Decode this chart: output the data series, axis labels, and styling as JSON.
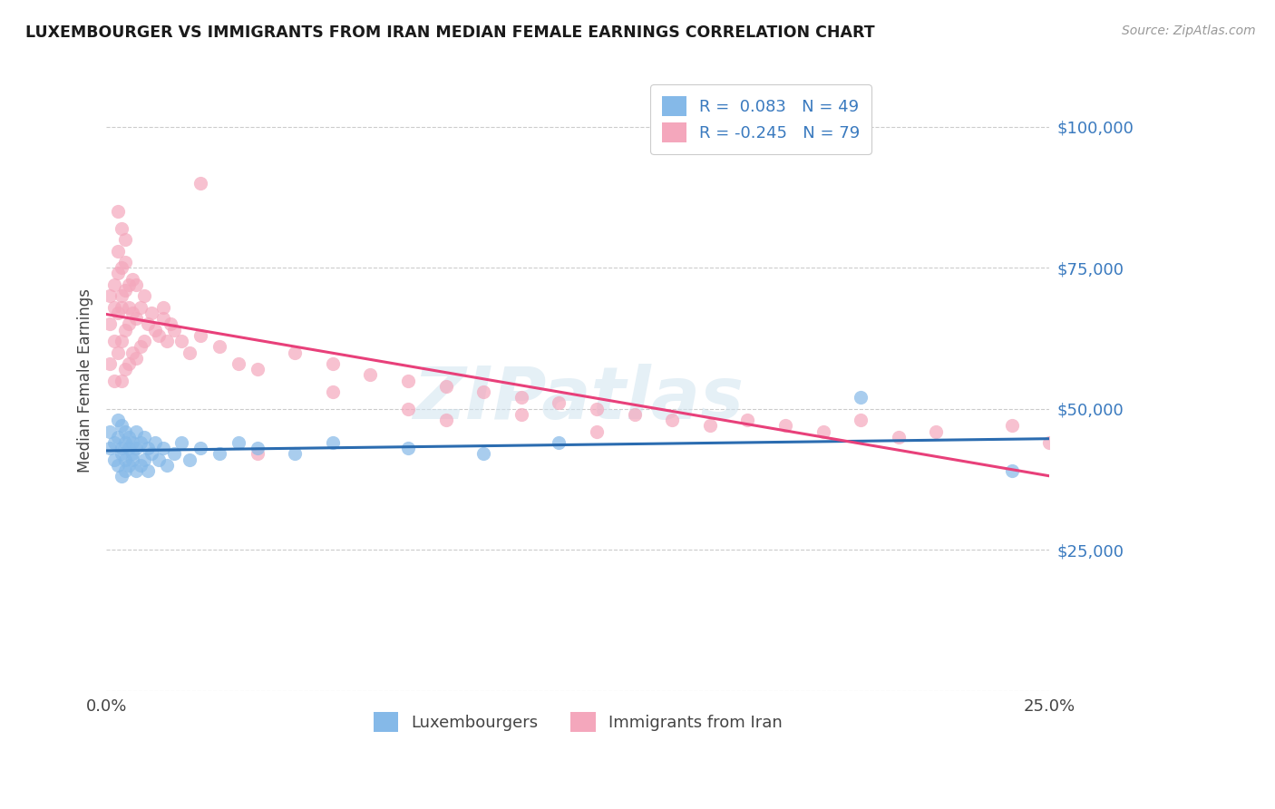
{
  "title": "LUXEMBOURGER VS IMMIGRANTS FROM IRAN MEDIAN FEMALE EARNINGS CORRELATION CHART",
  "source": "Source: ZipAtlas.com",
  "ylabel": "Median Female Earnings",
  "xlim": [
    0.0,
    0.25
  ],
  "ylim": [
    0,
    110000
  ],
  "yticks": [
    0,
    25000,
    50000,
    75000,
    100000
  ],
  "xticks": [
    0.0,
    0.05,
    0.1,
    0.15,
    0.2,
    0.25
  ],
  "xticklabels": [
    "0.0%",
    "",
    "",
    "",
    "",
    "25.0%"
  ],
  "yticklabels": [
    "",
    "$25,000",
    "$50,000",
    "$75,000",
    "$100,000"
  ],
  "series1_color": "#85b9e8",
  "series2_color": "#f4a7bc",
  "trendline1_color": "#2b6cb0",
  "trendline2_color": "#e8407a",
  "legend_R1": " 0.083",
  "legend_N1": "49",
  "legend_R2": "-0.245",
  "legend_N2": "79",
  "legend_label1": "Luxembourgers",
  "legend_label2": "Immigrants from Iran",
  "watermark": "ZIPatlas",
  "series1_x": [
    0.001,
    0.001,
    0.002,
    0.002,
    0.003,
    0.003,
    0.003,
    0.004,
    0.004,
    0.004,
    0.004,
    0.005,
    0.005,
    0.005,
    0.005,
    0.006,
    0.006,
    0.006,
    0.007,
    0.007,
    0.007,
    0.008,
    0.008,
    0.008,
    0.009,
    0.009,
    0.01,
    0.01,
    0.011,
    0.011,
    0.012,
    0.013,
    0.014,
    0.015,
    0.016,
    0.018,
    0.02,
    0.022,
    0.025,
    0.03,
    0.035,
    0.04,
    0.05,
    0.06,
    0.08,
    0.1,
    0.12,
    0.2,
    0.24
  ],
  "series1_y": [
    43000,
    46000,
    41000,
    44000,
    40000,
    45000,
    48000,
    38000,
    43000,
    47000,
    42000,
    39000,
    44000,
    46000,
    41000,
    40000,
    43000,
    45000,
    41000,
    44000,
    42000,
    39000,
    43000,
    46000,
    40000,
    44000,
    41000,
    45000,
    39000,
    43000,
    42000,
    44000,
    41000,
    43000,
    40000,
    42000,
    44000,
    41000,
    43000,
    42000,
    44000,
    43000,
    42000,
    44000,
    43000,
    42000,
    44000,
    52000,
    39000
  ],
  "series2_x": [
    0.001,
    0.001,
    0.001,
    0.002,
    0.002,
    0.002,
    0.002,
    0.003,
    0.003,
    0.003,
    0.003,
    0.004,
    0.004,
    0.004,
    0.004,
    0.004,
    0.005,
    0.005,
    0.005,
    0.005,
    0.006,
    0.006,
    0.006,
    0.006,
    0.007,
    0.007,
    0.007,
    0.008,
    0.008,
    0.008,
    0.009,
    0.009,
    0.01,
    0.01,
    0.011,
    0.012,
    0.013,
    0.014,
    0.015,
    0.016,
    0.017,
    0.018,
    0.02,
    0.022,
    0.025,
    0.03,
    0.035,
    0.04,
    0.05,
    0.06,
    0.07,
    0.08,
    0.09,
    0.1,
    0.11,
    0.12,
    0.13,
    0.14,
    0.15,
    0.16,
    0.17,
    0.18,
    0.19,
    0.2,
    0.21,
    0.22,
    0.24,
    0.25,
    0.06,
    0.08,
    0.09,
    0.11,
    0.13,
    0.015,
    0.025,
    0.04,
    0.005,
    0.003,
    0.004
  ],
  "series2_y": [
    58000,
    65000,
    70000,
    62000,
    68000,
    72000,
    55000,
    60000,
    67000,
    74000,
    78000,
    55000,
    62000,
    70000,
    75000,
    68000,
    57000,
    64000,
    71000,
    76000,
    58000,
    65000,
    72000,
    68000,
    60000,
    67000,
    73000,
    59000,
    66000,
    72000,
    61000,
    68000,
    62000,
    70000,
    65000,
    67000,
    64000,
    63000,
    66000,
    62000,
    65000,
    64000,
    62000,
    60000,
    63000,
    61000,
    58000,
    57000,
    60000,
    58000,
    56000,
    55000,
    54000,
    53000,
    52000,
    51000,
    50000,
    49000,
    48000,
    47000,
    48000,
    47000,
    46000,
    48000,
    45000,
    46000,
    47000,
    44000,
    53000,
    50000,
    48000,
    49000,
    46000,
    68000,
    90000,
    42000,
    80000,
    85000,
    82000
  ]
}
